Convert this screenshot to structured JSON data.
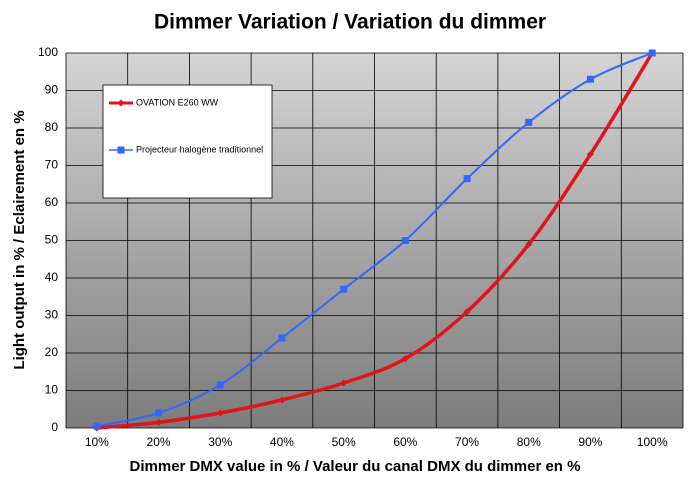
{
  "chart_data": {
    "type": "line",
    "title": "Dimmer Variation / Variation du dimmer",
    "xlabel": "Dimmer DMX value in % / Valeur du canal DMX du dimmer en %",
    "ylabel": "Light output in % / Eclairement en %",
    "categories": [
      "10%",
      "20%",
      "30%",
      "40%",
      "50%",
      "60%",
      "70%",
      "80%",
      "90%",
      "100%"
    ],
    "series": [
      {
        "name": "OVATION E260 WW",
        "color": "#e0141b",
        "marker": "diamond",
        "values": [
          0,
          1.5,
          4,
          7.5,
          12,
          18.5,
          31,
          49,
          73,
          100
        ]
      },
      {
        "name": "Projecteur halogène traditionnel",
        "color": "#3366ff",
        "marker": "square",
        "values": [
          0.5,
          4,
          11.5,
          24,
          37,
          50,
          66.5,
          81.5,
          93,
          100
        ]
      }
    ],
    "ylim": [
      0,
      100
    ],
    "yticks": [
      0,
      10,
      20,
      30,
      40,
      50,
      60,
      70,
      80,
      90,
      100
    ],
    "grid": true,
    "legend": "upper-left"
  }
}
